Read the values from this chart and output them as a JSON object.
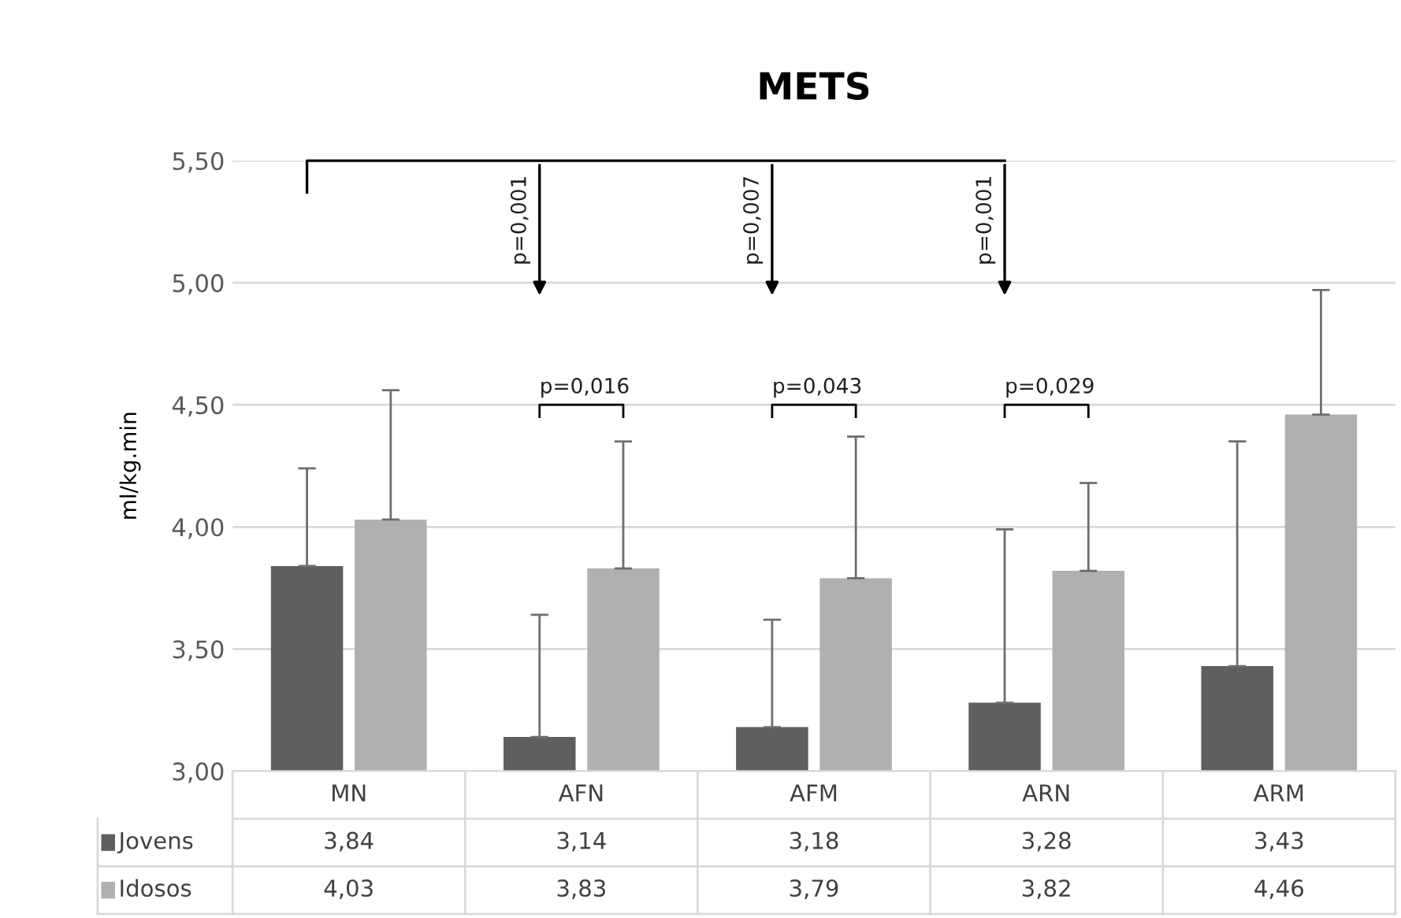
{
  "chart_data": {
    "type": "bar",
    "title": "METS",
    "ylabel": "ml/kg.min",
    "categories": [
      "MN",
      "AFN",
      "AFM",
      "ARN",
      "ARM"
    ],
    "series": [
      {
        "name": "Jovens",
        "color": "#5f5f5f",
        "values": [
          3.84,
          3.14,
          3.18,
          3.28,
          3.43
        ],
        "value_labels": [
          "3,84",
          "3,14",
          "3,18",
          "3,28",
          "3,43"
        ],
        "errors": [
          [
            3.84,
            4.24
          ],
          [
            3.14,
            3.64
          ],
          [
            3.18,
            3.62
          ],
          [
            3.28,
            3.99
          ],
          [
            3.43,
            4.35
          ]
        ]
      },
      {
        "name": "Idosos",
        "color": "#b0b0b0",
        "values": [
          4.03,
          3.83,
          3.79,
          3.82,
          4.46
        ],
        "value_labels": [
          "4,03",
          "3,83",
          "3,79",
          "3,82",
          "4,46"
        ],
        "errors": [
          [
            4.03,
            4.56
          ],
          [
            3.83,
            4.35
          ],
          [
            3.79,
            4.37
          ],
          [
            3.82,
            4.18
          ],
          [
            4.46,
            4.97
          ]
        ]
      }
    ],
    "ylim": [
      3.0,
      5.5
    ],
    "yticks": [
      {
        "value": 3.0,
        "label": "3,00"
      },
      {
        "value": 3.5,
        "label": "3,50"
      },
      {
        "value": 4.0,
        "label": "4,00"
      },
      {
        "value": 4.5,
        "label": "4,50"
      },
      {
        "value": 5.0,
        "label": "5,00"
      },
      {
        "value": 5.5,
        "label": "5,50"
      }
    ],
    "grid": "y",
    "legend": "bottom",
    "annotations": [
      "p=0,001",
      "p=0,007",
      "p=0,001",
      "p=0,016",
      "p=0,043",
      "p=0,029"
    ]
  }
}
